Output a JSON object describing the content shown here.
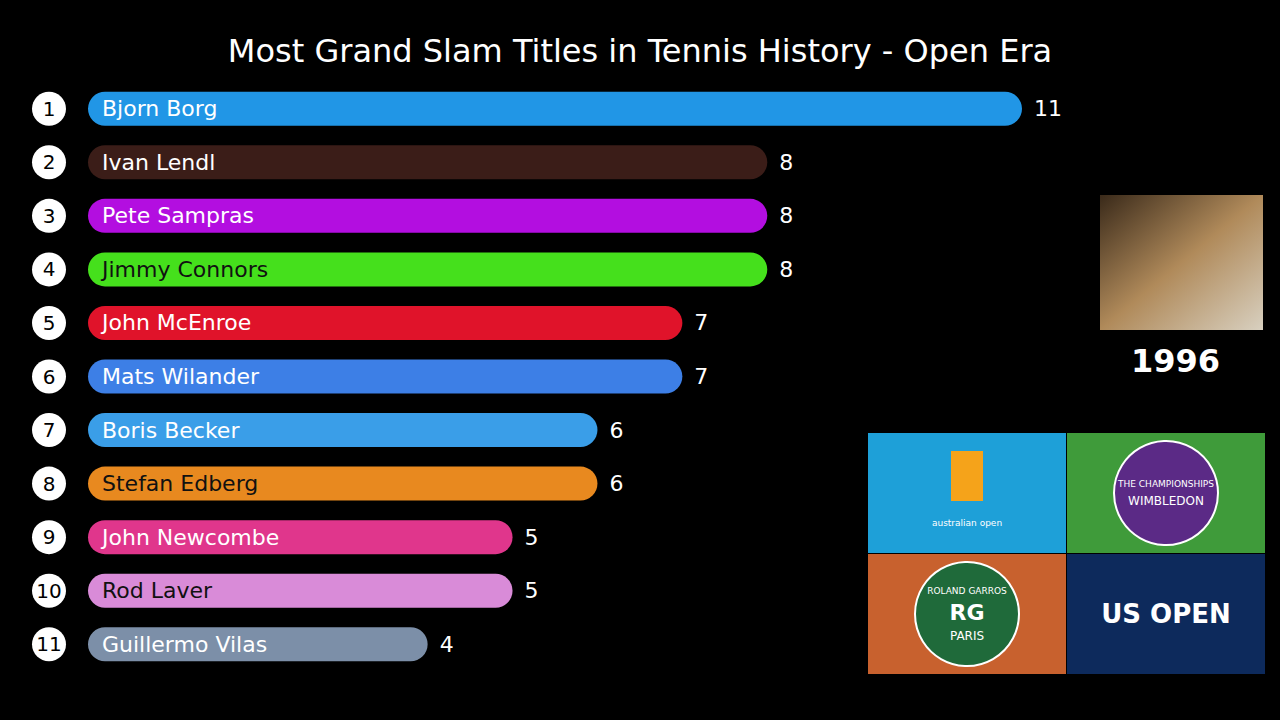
{
  "chart_data": {
    "type": "bar",
    "title": "Most Grand Slam Titles in Tennis History - Open Era",
    "orientation": "horizontal",
    "categories": [
      "Bjorn Borg",
      "Ivan Lendl",
      "Pete Sampras",
      "Jimmy Connors",
      "John McEnroe",
      "Mats Wilander",
      "Boris Becker",
      "Stefan Edberg",
      "John Newcombe",
      "Rod Laver",
      "Guillermo Vilas"
    ],
    "values": [
      11,
      8,
      8,
      8,
      7,
      7,
      6,
      6,
      5,
      5,
      4
    ],
    "ranks": [
      1,
      2,
      3,
      4,
      5,
      6,
      7,
      8,
      9,
      10,
      11
    ],
    "colors": [
      "#2196e6",
      "#3b1d18",
      "#b30ee0",
      "#45e01c",
      "#e0132a",
      "#3d7fe6",
      "#3a9ee8",
      "#e8891f",
      "#e0368c",
      "#d98bd8",
      "#7c8fa8"
    ],
    "xlim": [
      0,
      11
    ],
    "data_labels": true,
    "tick_labels": false,
    "grid": false,
    "annotations": [
      "1996"
    ],
    "logos": [
      [
        "australian open"
      ],
      [
        "THE CHAMPIONSHIPS",
        "WIMBLEDON"
      ],
      [
        "ROLAND GARROS",
        "RG",
        "PARIS"
      ],
      [
        "US OPEN"
      ]
    ]
  }
}
